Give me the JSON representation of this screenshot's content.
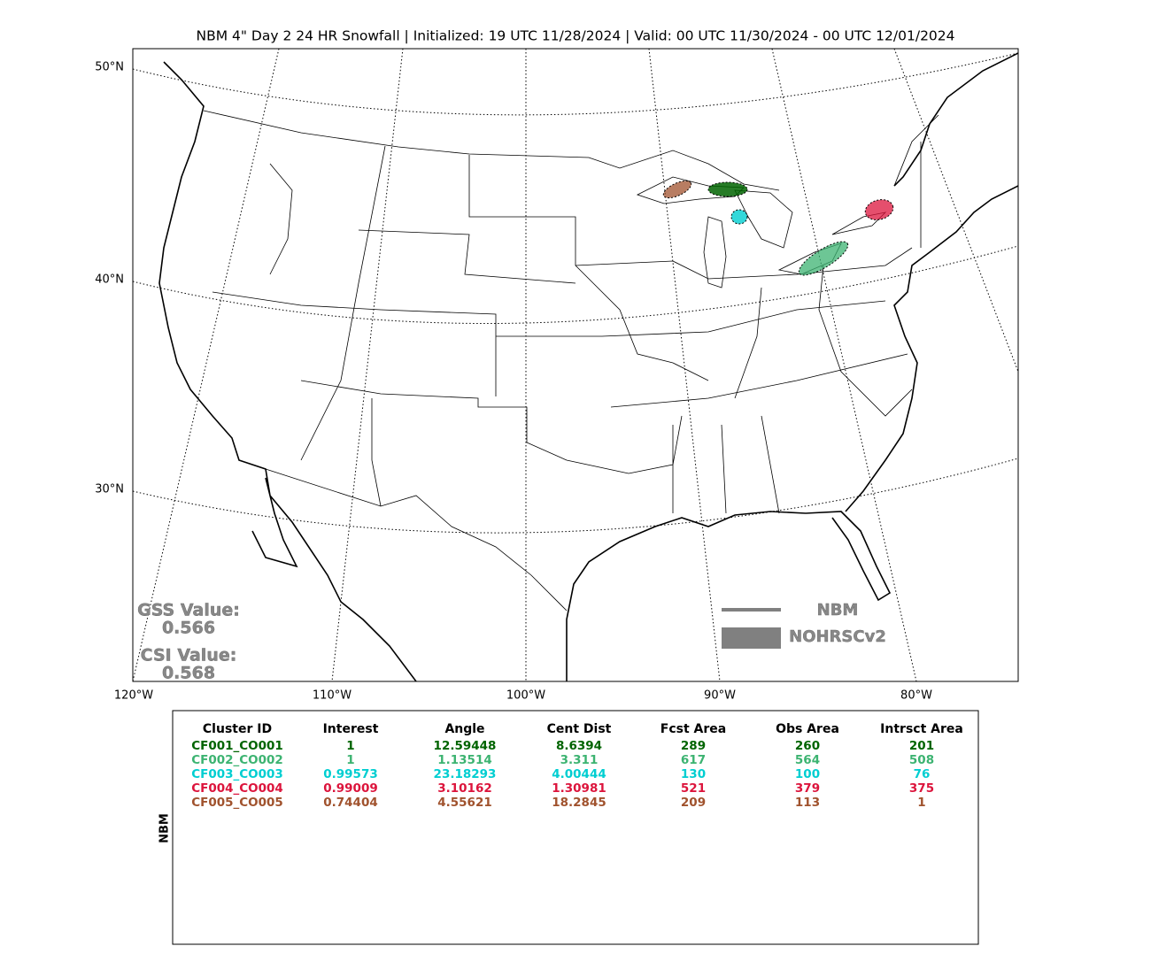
{
  "title": "NBM 4\" Day 2 24 HR Snowfall | Initialized: 19 UTC 11/28/2024 | Valid: 00 UTC 11/30/2024 - 00 UTC 12/01/2024",
  "map": {
    "lat_labels": [
      "50°N",
      "40°N",
      "30°N"
    ],
    "lon_labels": [
      "120°W",
      "110°W",
      "100°W",
      "90°W",
      "80°W"
    ],
    "legend": {
      "line": "NBM",
      "fill": "NOHRSCv2"
    },
    "scores": {
      "gss_label": "GSS Value:",
      "gss": "0.566",
      "csi_label": "CSI Value:",
      "csi": "0.568"
    }
  },
  "table": {
    "side_label": "NBM",
    "header": [
      "Cluster ID",
      "Interest",
      "Angle",
      "Cent Dist",
      "Fcst Area",
      "Obs Area",
      "Intrsct Area"
    ],
    "row_colors": [
      "#006400",
      "#3cb371",
      "#00ced1",
      "#dc143c",
      "#a0522d"
    ],
    "rows": [
      [
        "CF001_CO001",
        "1",
        "12.59448",
        "8.6394",
        "289",
        "260",
        "201"
      ],
      [
        "CF002_CO002",
        "1",
        "1.13514",
        "3.311",
        "617",
        "564",
        "508"
      ],
      [
        "CF003_CO003",
        "0.99573",
        "23.18293",
        "4.00444",
        "130",
        "100",
        "76"
      ],
      [
        "CF004_CO004",
        "0.99009",
        "3.10162",
        "1.30981",
        "521",
        "379",
        "375"
      ],
      [
        "CF005_CO005",
        "0.74404",
        "4.55621",
        "18.2845",
        "209",
        "113",
        "1"
      ]
    ]
  }
}
